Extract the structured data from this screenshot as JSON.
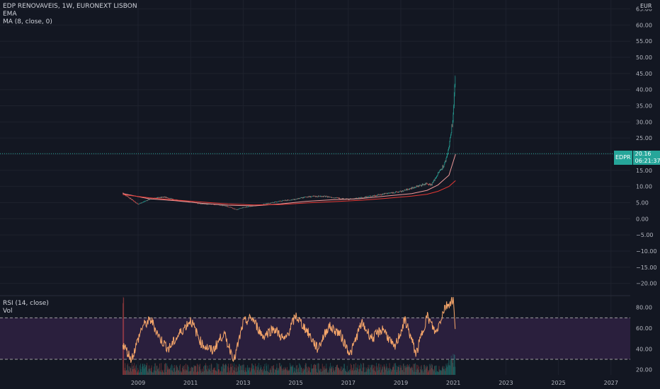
{
  "header": {
    "title_line": "EDP RENOVAVEIS, 1W, EURONEXT LISBON",
    "indicator_1": "EMA",
    "indicator_2": "MA (8, close, 0)",
    "currency": "EUR"
  },
  "rsi_panel": {
    "label": "RSI (14, close)",
    "vol_label": "Vol",
    "upper_band": 70,
    "lower_band": 30
  },
  "price_tag": {
    "symbol": "EDPR",
    "price": "20.16",
    "countdown": "06:21:37"
  },
  "colors": {
    "background": "#131722",
    "up": "#26a69a",
    "down": "#ef5350",
    "rsi_line": "#f6a66a",
    "rsi_band_fill": "#2a1f3d",
    "ema": "#ef9a9a",
    "ma": "#e53935"
  },
  "chart_data": [
    {
      "type": "line",
      "series_kind": "candlestick",
      "x": [
        "2008-06",
        "2008-09",
        "2009-01",
        "2009-06",
        "2010-01",
        "2010-06",
        "2011-01",
        "2011-06",
        "2012-01",
        "2012-06",
        "2012-10",
        "2013-01",
        "2013-06",
        "2014-01",
        "2014-06",
        "2015-01",
        "2015-06",
        "2016-01",
        "2016-06",
        "2017-01",
        "2017-06",
        "2018-01",
        "2018-06",
        "2019-01",
        "2019-06",
        "2020-01",
        "2020-03",
        "2020-06",
        "2020-09",
        "2020-11",
        "2021-01",
        "2021-02"
      ],
      "series": [
        {
          "values": [
            8.0,
            6.5,
            4.5,
            6.0,
            6.8,
            5.8,
            5.2,
            4.6,
            4.4,
            3.8,
            2.8,
            3.5,
            4.0,
            4.8,
            5.5,
            6.0,
            6.8,
            7.0,
            6.6,
            6.0,
            6.4,
            7.2,
            7.8,
            8.4,
            9.5,
            11.0,
            10.5,
            14.0,
            17.0,
            22.0,
            32.0,
            46.0
          ]
        }
      ],
      "ylim": [
        -22.5,
        66
      ],
      "y_ticks": [
        "65.00",
        "60.00",
        "55.00",
        "50.00",
        "45.00",
        "40.00",
        "35.00",
        "30.00",
        "25.00",
        "20.00",
        "15.00",
        "10.00",
        "5.00",
        "0.00",
        "−5.00",
        "−10.00",
        "−15.00",
        "−20.00"
      ],
      "x_ticks": [
        "2009",
        "2011",
        "2013",
        "2015",
        "2017",
        "2019",
        "2021",
        "2023",
        "2025",
        "2027"
      ]
    },
    {
      "type": "line",
      "series_kind": "moving-averages",
      "x": [
        "2008-06",
        "2009-06",
        "2010-06",
        "2011-06",
        "2012-06",
        "2013-06",
        "2014-06",
        "2015-06",
        "2016-06",
        "2017-06",
        "2018-06",
        "2019-06",
        "2020-01",
        "2020-06",
        "2020-11",
        "2021-02"
      ],
      "series": [
        {
          "name": "EMA",
          "values": [
            7.8,
            6.2,
            5.6,
            4.8,
            4.2,
            4.0,
            4.6,
            5.4,
            5.9,
            6.2,
            7.0,
            7.8,
            8.8,
            10.5,
            13.5,
            20.0
          ]
        },
        {
          "name": "MA (8, close, 0)",
          "values": [
            7.5,
            6.5,
            5.8,
            5.2,
            4.6,
            4.3,
            4.4,
            4.9,
            5.3,
            5.7,
            6.3,
            7.0,
            7.6,
            8.5,
            10.0,
            11.8
          ]
        }
      ]
    },
    {
      "type": "line",
      "series_kind": "rsi",
      "x": [
        "2008-06",
        "2008-10",
        "2009-03",
        "2009-07",
        "2009-11",
        "2010-03",
        "2010-08",
        "2011-01",
        "2011-06",
        "2011-11",
        "2012-04",
        "2012-09",
        "2013-01",
        "2013-05",
        "2013-10",
        "2014-03",
        "2014-08",
        "2015-01",
        "2015-06",
        "2015-11",
        "2016-04",
        "2016-09",
        "2017-02",
        "2017-07",
        "2017-12",
        "2018-05",
        "2018-10",
        "2019-03",
        "2019-08",
        "2020-01",
        "2020-05",
        "2020-09",
        "2021-01",
        "2021-02"
      ],
      "series": [
        {
          "values": [
            45,
            30,
            62,
            68,
            50,
            40,
            55,
            68,
            45,
            38,
            55,
            30,
            65,
            70,
            52,
            60,
            48,
            72,
            58,
            40,
            62,
            55,
            35,
            65,
            50,
            60,
            40,
            68,
            35,
            72,
            55,
            80,
            88,
            50
          ]
        }
      ],
      "ylim": [
        15,
        90
      ],
      "y_ticks": [
        "80.00",
        "60.00",
        "40.00",
        "20.00"
      ]
    }
  ]
}
